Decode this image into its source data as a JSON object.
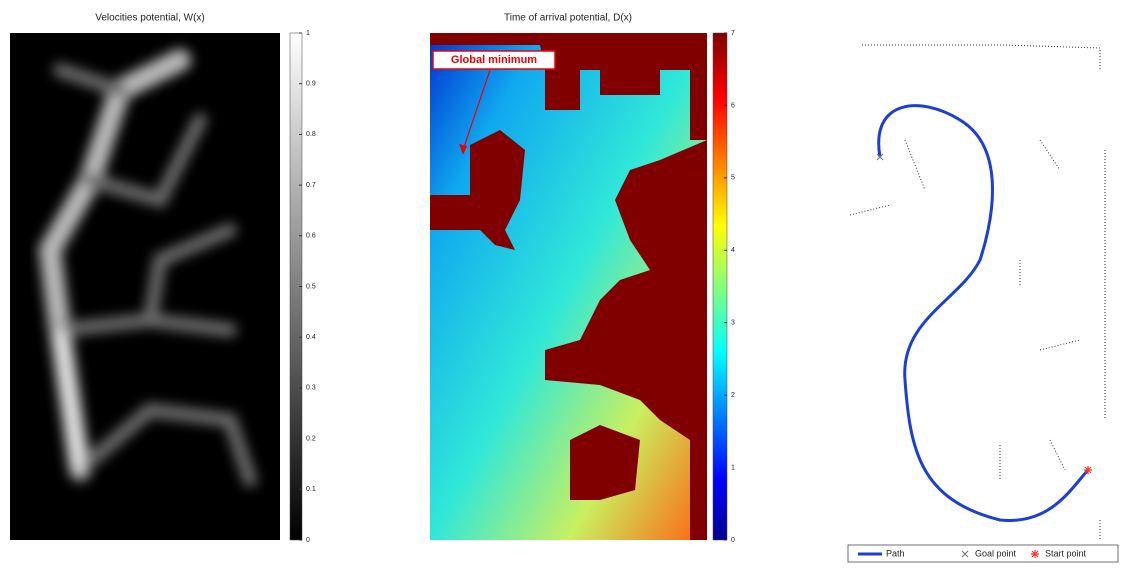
{
  "chart_data": [
    {
      "type": "heatmap",
      "title": "Velocities potential, W(x)",
      "colormap": "gray",
      "clim": [
        0,
        1
      ],
      "cticks": [
        0,
        0.1,
        0.2,
        0.3,
        0.4,
        0.5,
        0.6,
        0.7,
        0.8,
        0.9,
        1
      ]
    },
    {
      "type": "heatmap",
      "title": "Time of arrival potential, D(x)",
      "colormap": "jet",
      "clim": [
        0,
        7
      ],
      "cticks": [
        0,
        1,
        2,
        3,
        4,
        5,
        6,
        7
      ],
      "annotation": "Global minimum"
    },
    {
      "type": "path",
      "series": [
        {
          "name": "Path",
          "color": "#1a3fd6",
          "marker": "line"
        },
        {
          "name": "Goal point",
          "color": "#777777",
          "marker": "x"
        },
        {
          "name": "Start point",
          "color": "#ff3030",
          "marker": "*"
        }
      ]
    }
  ]
}
